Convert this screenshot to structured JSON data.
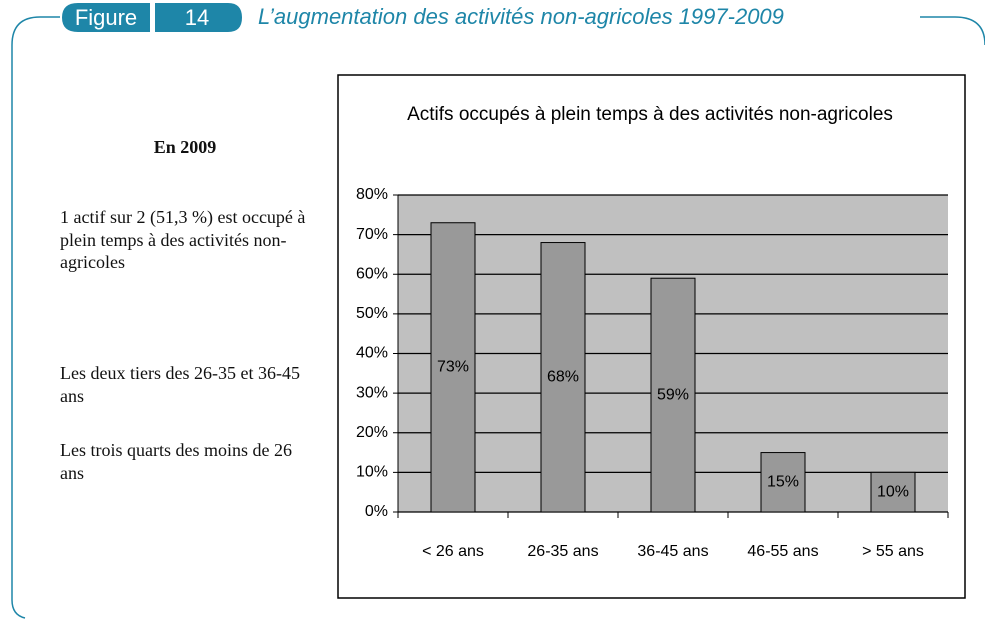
{
  "header": {
    "figure": "Figure",
    "number": "14",
    "title": "L’augmentation des activités non-agricoles 1997-2009"
  },
  "sidebar": {
    "heading": "En 2009",
    "paragraphs": [
      "1 actif sur 2 (51,3 %) est occupé à plein temps à des activités non-agricoles",
      "Les deux tiers des 26-35 et 36-45 ans",
      "Les trois quarts des moins de 26 ans"
    ]
  },
  "chart_data": {
    "type": "bar",
    "title": "Actifs occupés à plein temps à des activités non-agricoles",
    "categories": [
      "< 26 ans",
      "26-35 ans",
      "36-45 ans",
      "46-55 ans",
      "> 55 ans"
    ],
    "values": [
      73,
      68,
      59,
      15,
      10
    ],
    "value_labels": [
      "73%",
      "68%",
      "59%",
      "15%",
      "10%"
    ],
    "color": "#999999",
    "ylim": [
      0,
      80
    ],
    "yticks": [
      {
        "value": 0,
        "label": "0%"
      },
      {
        "value": 10,
        "label": "10%"
      },
      {
        "value": 20,
        "label": "20%"
      },
      {
        "value": 30,
        "label": "30%"
      },
      {
        "value": 40,
        "label": "40%"
      },
      {
        "value": 50,
        "label": "50%"
      },
      {
        "value": 60,
        "label": "60%"
      },
      {
        "value": 70,
        "label": "70%"
      },
      {
        "value": 80,
        "label": "80%"
      }
    ],
    "grid": true
  }
}
